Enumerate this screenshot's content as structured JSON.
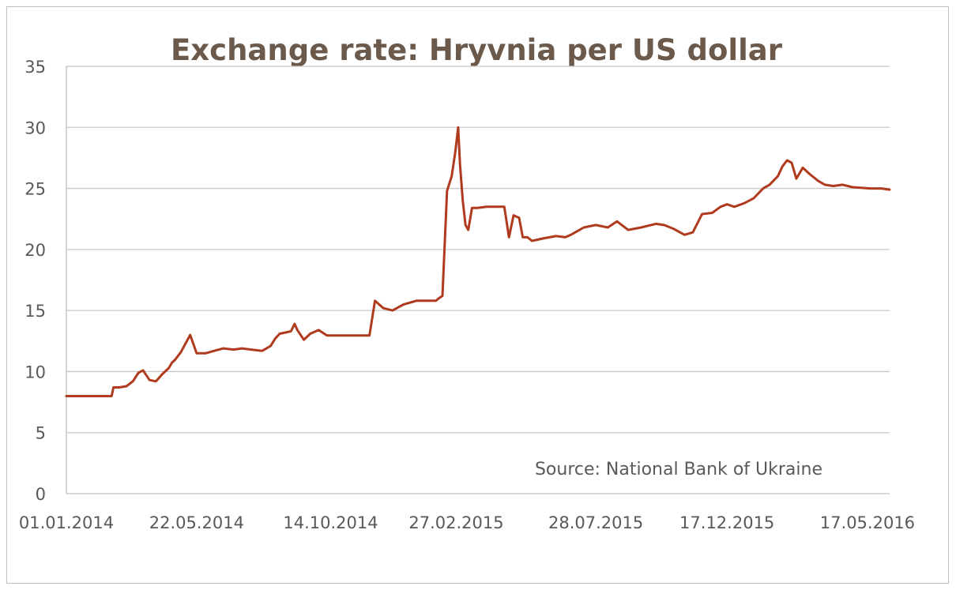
{
  "chart_data": {
    "type": "line",
    "title": "Exchange rate: Hryvnia per US dollar",
    "annotation": "Source: National Bank of Ukraine",
    "xlabel": "",
    "ylabel": "",
    "ylim": [
      0,
      35
    ],
    "y_ticks": [
      "0",
      "5",
      "10",
      "15",
      "20",
      "25",
      "30",
      "35"
    ],
    "x_range": [
      "2014-01-01",
      "2016-06-10"
    ],
    "x_ticks": [
      {
        "date": "2014-01-01",
        "label": "01.01.2014"
      },
      {
        "date": "2014-05-22",
        "label": "22.05.2014"
      },
      {
        "date": "2014-10-14",
        "label": "14.10.2014"
      },
      {
        "date": "2015-02-27",
        "label": "27.02.2015"
      },
      {
        "date": "2015-07-28",
        "label": "28.07.2015"
      },
      {
        "date": "2015-12-17",
        "label": "17.12.2015"
      },
      {
        "date": "2016-05-17",
        "label": "17.05.2016"
      }
    ],
    "grid": true,
    "line_color": "#b03a1e",
    "series": [
      {
        "x": [
          "2014-01-01",
          "2014-01-10",
          "2014-01-20",
          "2014-02-01",
          "2014-02-10",
          "2014-02-19",
          "2014-02-21",
          "2014-02-27",
          "2014-03-07",
          "2014-03-14",
          "2014-03-20",
          "2014-03-25",
          "2014-04-01",
          "2014-04-08",
          "2014-04-15",
          "2014-04-22",
          "2014-04-25",
          "2014-04-29",
          "2014-05-05",
          "2014-05-15",
          "2014-05-22",
          "2014-06-01",
          "2014-06-10",
          "2014-06-20",
          "2014-07-01",
          "2014-07-10",
          "2014-07-20",
          "2014-08-01",
          "2014-08-10",
          "2014-08-15",
          "2014-08-20",
          "2014-08-26",
          "2014-09-01",
          "2014-09-05",
          "2014-09-08",
          "2014-09-15",
          "2014-09-22",
          "2014-10-01",
          "2014-10-10",
          "2014-10-20",
          "2014-11-01",
          "2014-11-10",
          "2014-11-20",
          "2014-11-25",
          "2014-12-01",
          "2014-12-10",
          "2014-12-20",
          "2015-01-01",
          "2015-01-15",
          "2015-01-25",
          "2015-02-01",
          "2015-02-05",
          "2015-02-08",
          "2015-02-12",
          "2015-02-17",
          "2015-02-22",
          "2015-02-26",
          "2015-03-01",
          "2015-03-03",
          "2015-03-06",
          "2015-03-09",
          "2015-03-12",
          "2015-03-16",
          "2015-03-22",
          "2015-04-01",
          "2015-04-10",
          "2015-04-20",
          "2015-04-25",
          "2015-04-30",
          "2015-05-06",
          "2015-05-10",
          "2015-05-15",
          "2015-05-20",
          "2015-06-01",
          "2015-06-15",
          "2015-06-25",
          "2015-07-01",
          "2015-07-15",
          "2015-07-28",
          "2015-08-10",
          "2015-08-20",
          "2015-09-01",
          "2015-09-15",
          "2015-10-01",
          "2015-10-10",
          "2015-10-20",
          "2015-11-01",
          "2015-11-10",
          "2015-11-20",
          "2015-12-01",
          "2015-12-10",
          "2015-12-17",
          "2015-12-25",
          "2016-01-05",
          "2016-01-15",
          "2016-01-25",
          "2016-02-01",
          "2016-02-10",
          "2016-02-15",
          "2016-02-20",
          "2016-02-25",
          "2016-03-01",
          "2016-03-08",
          "2016-03-15",
          "2016-03-25",
          "2016-04-01",
          "2016-04-10",
          "2016-04-20",
          "2016-05-01",
          "2016-05-10",
          "2016-05-20",
          "2016-06-01",
          "2016-06-10"
        ],
        "y": [
          7.99,
          7.99,
          7.99,
          7.99,
          7.99,
          7.99,
          8.7,
          8.7,
          8.8,
          9.2,
          9.9,
          10.1,
          9.3,
          9.2,
          9.8,
          10.3,
          10.7,
          11.0,
          11.6,
          13.0,
          11.5,
          11.5,
          11.7,
          11.9,
          11.8,
          11.9,
          11.8,
          11.7,
          12.1,
          12.7,
          13.1,
          13.2,
          13.3,
          13.9,
          13.4,
          12.6,
          13.1,
          13.4,
          12.95,
          12.95,
          12.95,
          12.95,
          12.95,
          12.95,
          15.8,
          15.2,
          15.0,
          15.5,
          15.8,
          15.8,
          15.8,
          15.8,
          16.0,
          16.2,
          24.8,
          26.0,
          28.0,
          30.0,
          27.0,
          24.0,
          22.0,
          21.6,
          23.4,
          23.4,
          23.5,
          23.5,
          23.5,
          21.0,
          22.8,
          22.6,
          21.0,
          21.0,
          20.7,
          20.9,
          21.1,
          21.0,
          21.2,
          21.8,
          22.0,
          21.8,
          22.3,
          21.6,
          21.8,
          22.1,
          22.0,
          21.7,
          21.2,
          21.4,
          22.9,
          23.0,
          23.5,
          23.7,
          23.5,
          23.8,
          24.2,
          25.0,
          25.3,
          26.0,
          26.8,
          27.3,
          27.1,
          25.8,
          26.7,
          26.2,
          25.6,
          25.3,
          25.2,
          25.3,
          25.1,
          25.05,
          25.0,
          25.0,
          24.9
        ]
      }
    ]
  }
}
